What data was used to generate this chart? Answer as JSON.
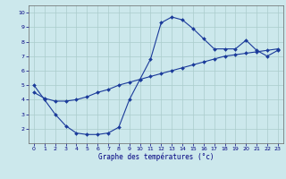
{
  "xlabel": "Graphe des températures (°c)",
  "background_color": "#cce8ec",
  "grid_color": "#aacccc",
  "line_color": "#1a3a9a",
  "xlim": [
    -0.5,
    23.5
  ],
  "ylim": [
    1.0,
    10.5
  ],
  "xticks": [
    0,
    1,
    2,
    3,
    4,
    5,
    6,
    7,
    8,
    9,
    10,
    11,
    12,
    13,
    14,
    15,
    16,
    17,
    18,
    19,
    20,
    21,
    22,
    23
  ],
  "yticks": [
    2,
    3,
    4,
    5,
    6,
    7,
    8,
    9,
    10
  ],
  "curve1_x": [
    0,
    1,
    2,
    3,
    4,
    5,
    6,
    7,
    8,
    9,
    10,
    11,
    12,
    13,
    14,
    15,
    16,
    17,
    18,
    19,
    20,
    21,
    22,
    23
  ],
  "curve1_y": [
    5.0,
    4.0,
    3.0,
    2.2,
    1.7,
    1.6,
    1.6,
    1.7,
    2.1,
    4.0,
    5.4,
    6.8,
    9.3,
    9.7,
    9.5,
    8.9,
    8.2,
    7.5,
    7.5,
    7.5,
    8.1,
    7.4,
    7.0,
    7.4
  ],
  "curve2_x": [
    0,
    1,
    2,
    3,
    4,
    5,
    6,
    7,
    8,
    9,
    10,
    11,
    12,
    13,
    14,
    15,
    16,
    17,
    18,
    19,
    20,
    21,
    22,
    23
  ],
  "curve2_y": [
    4.5,
    4.1,
    3.9,
    3.9,
    4.0,
    4.2,
    4.5,
    4.7,
    5.0,
    5.2,
    5.4,
    5.6,
    5.8,
    6.0,
    6.2,
    6.4,
    6.6,
    6.8,
    7.0,
    7.1,
    7.2,
    7.3,
    7.4,
    7.5
  ]
}
